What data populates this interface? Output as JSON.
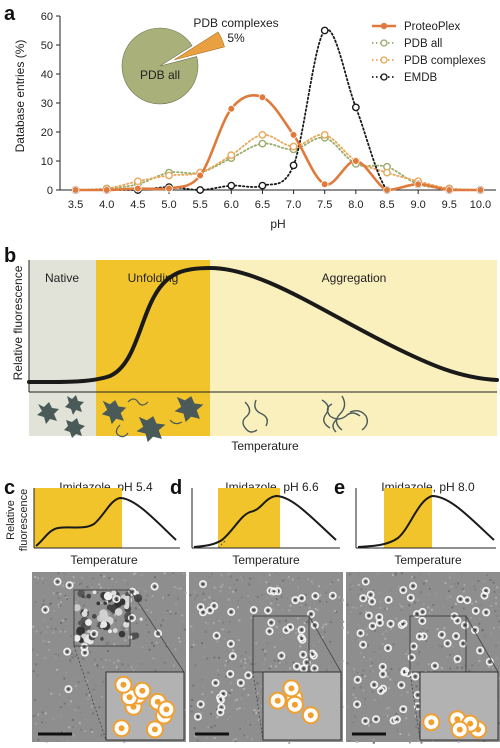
{
  "panels": {
    "a": {
      "letter": "a",
      "chart_data": {
        "type": "line",
        "xlabel": "pH",
        "ylabel": "Database entries (%)",
        "ylim": [
          0,
          60
        ],
        "yticks": [
          "0",
          "10",
          "20",
          "30",
          "40",
          "50",
          "60"
        ],
        "x": [
          3.5,
          4.0,
          4.5,
          5.0,
          5.5,
          6.0,
          6.5,
          7.0,
          7.5,
          8.0,
          8.5,
          9.0,
          9.5,
          10.0
        ],
        "xtick_labels": [
          "3.5",
          "4.0",
          "4.5",
          "5.0",
          "5.5",
          "6.0",
          "6.5",
          "7.0",
          "7.5",
          "8.0",
          "8.5",
          "9.0",
          "9.5",
          "10.0"
        ],
        "legend_position": "top-right",
        "series": [
          {
            "name": "ProteoPlex",
            "color": "#e07a3c",
            "style": "solid",
            "values": [
              0,
              0,
              0.5,
              0.5,
              5,
              28,
              32,
              19,
              2,
              10,
              0,
              2,
              0,
              0
            ]
          },
          {
            "name": "PDB all",
            "color": "#9aab6a",
            "style": "dotted",
            "values": [
              0,
              0.5,
              2,
              6,
              6,
              11,
              16,
              14,
              18,
              9,
              8,
              2,
              0.5,
              0
            ]
          },
          {
            "name": "PDB complexes",
            "color": "#e8a85a",
            "style": "dotted",
            "values": [
              0,
              0.5,
              3,
              5,
              6,
              12,
              19,
              15,
              19,
              10,
              6,
              3,
              0.5,
              0
            ]
          },
          {
            "name": "EMDB",
            "color": "#1a1a1a",
            "style": "dotted",
            "values": [
              0,
              0,
              0,
              1,
              0,
              1.5,
              1.5,
              8.5,
              55,
              28.5,
              0,
              2,
              0,
              0
            ]
          }
        ],
        "inset_pie": {
          "slices": [
            {
              "label": "PDB all",
              "value": 95,
              "color": "#a9b07a"
            },
            {
              "label": "PDB complexes",
              "value": 5,
              "color": "#e8a040"
            }
          ],
          "complexes_label": "PDB complexes",
          "complexes_pct": "5%"
        }
      }
    },
    "b": {
      "letter": "b",
      "regions": [
        {
          "label": "Native",
          "color": "#e2e3d8"
        },
        {
          "label": "Unfolding",
          "color": "#f2c42c"
        },
        {
          "label": "Aggregation",
          "color": "#faf0be"
        }
      ],
      "ylabel": "Relative fluorescence",
      "xlabel": "Temperature"
    },
    "c": {
      "letter": "c",
      "title": "Imidazole, pH 5.4",
      "ylabel_line1": "Relative",
      "ylabel_line2": "fluorescence",
      "xlabel": "Temperature"
    },
    "d": {
      "letter": "d",
      "title": "Imidazole, pH 6.6",
      "xlabel": "Temperature"
    },
    "e": {
      "letter": "e",
      "title": "Imidazole, pH 8.0",
      "xlabel": "Temperature"
    }
  },
  "colors": {
    "axis": "#222222",
    "curve": "#1a1a1a",
    "highlight": "#f2c42c",
    "micrograph_bg": "#8e8e8e",
    "particle": "#f0a030"
  }
}
